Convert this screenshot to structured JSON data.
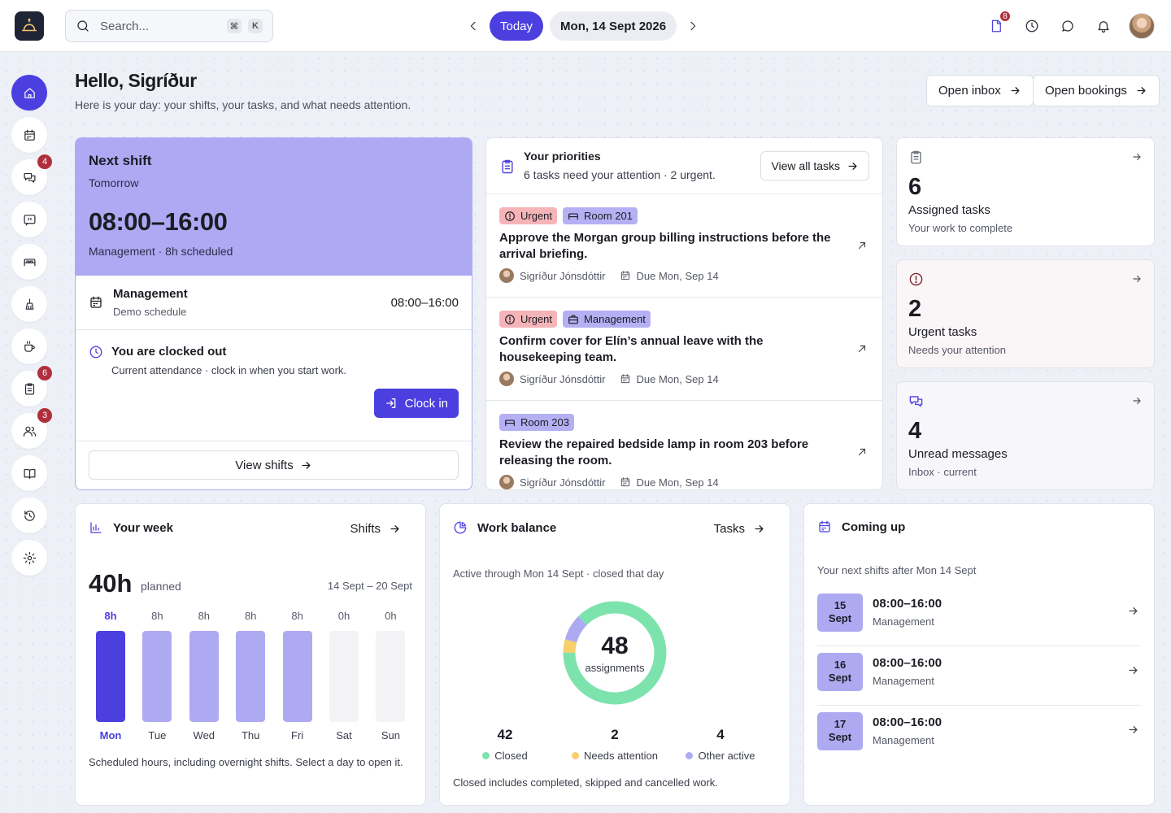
{
  "topbar": {
    "search_placeholder": "Search...",
    "kbd_cmd": "⌘",
    "kbd_k": "K",
    "today_label": "Today",
    "date_label": "Mon, 14 Sept 2026",
    "docs_badge": "8",
    "icons": [
      "logo-icon",
      "search-icon",
      "chevron-left-icon",
      "chevron-right-icon",
      "document-icon",
      "clock-icon",
      "chat-icon",
      "bell-icon"
    ]
  },
  "sidebar": {
    "items": [
      {
        "name": "home",
        "icon": "home-icon",
        "active": true,
        "badge": ""
      },
      {
        "name": "calendar",
        "icon": "calendar-icon",
        "badge": ""
      },
      {
        "name": "messages",
        "icon": "chat-bubbles-icon",
        "badge": "4"
      },
      {
        "name": "feedback",
        "icon": "chat-quote-icon",
        "badge": ""
      },
      {
        "name": "rooms",
        "icon": "bed-icon",
        "badge": ""
      },
      {
        "name": "housekeeping",
        "icon": "cleaning-icon",
        "badge": ""
      },
      {
        "name": "breakfast",
        "icon": "coffee-icon",
        "badge": ""
      },
      {
        "name": "tasks",
        "icon": "clipboard-icon",
        "badge": "6"
      },
      {
        "name": "people",
        "icon": "users-icon",
        "badge": "3"
      },
      {
        "name": "guide",
        "icon": "book-icon",
        "badge": ""
      },
      {
        "name": "history",
        "icon": "history-icon",
        "badge": ""
      },
      {
        "name": "settings",
        "icon": "gear-icon",
        "badge": ""
      }
    ]
  },
  "header": {
    "greeting": "Hello, Sigríður",
    "subtitle": "Here is your day: your shifts, your tasks, and what needs attention.",
    "open_inbox": "Open inbox",
    "open_bookings": "Open bookings"
  },
  "next_shift": {
    "title": "Next shift",
    "when": "Tomorrow",
    "time": "08:00–16:00",
    "meta": "Management · 8h scheduled",
    "row_title": "Management",
    "row_sub": "Demo schedule",
    "row_time": "08:00–16:00",
    "clock_title": "You are clocked out",
    "clock_sub": "Current attendance · clock in when you start work.",
    "clock_in": "Clock in",
    "view_shifts": "View shifts"
  },
  "priorities": {
    "title": "Your priorities",
    "subtitle": "6 tasks need your attention · 2 urgent.",
    "view_all": "View all tasks",
    "tasks": [
      {
        "tags": [
          {
            "label": "Urgent",
            "kind": "urgent"
          },
          {
            "label": "Room 201",
            "kind": "room"
          }
        ],
        "title": "Approve the Morgan group billing instructions before the arrival briefing.",
        "assignee": "Sigríður Jónsdóttir",
        "due": "Due Mon, Sep 14"
      },
      {
        "tags": [
          {
            "label": "Urgent",
            "kind": "urgent"
          },
          {
            "label": "Management",
            "kind": "room"
          }
        ],
        "title": "Confirm cover for Elín’s annual leave with the housekeeping team.",
        "assignee": "Sigríður Jónsdóttir",
        "due": "Due Mon, Sep 14"
      },
      {
        "tags": [
          {
            "label": "Room 203",
            "kind": "room"
          }
        ],
        "title": "Review the repaired bedside lamp in room 203 before releasing the room.",
        "assignee": "Sigríður Jónsdóttir",
        "due": "Due Mon, Sep 14"
      }
    ]
  },
  "stats": [
    {
      "num": "6",
      "label": "Assigned tasks",
      "sub": "Your work to complete",
      "icon": "clipboard-icon",
      "bg": "#ffffff"
    },
    {
      "num": "2",
      "label": "Urgent tasks",
      "sub": "Needs your attention",
      "icon": "alert-circle-icon",
      "bg": "#faf5f6"
    },
    {
      "num": "4",
      "label": "Unread messages",
      "sub": "Inbox · current",
      "icon": "chat-bubbles-icon",
      "bg": "#f6f6fb"
    }
  ],
  "week": {
    "title": "Your week",
    "link": "Shifts",
    "total": "40h",
    "planned": "planned",
    "range": "14 Sept – 20 Sept",
    "days": [
      {
        "day": "Mon",
        "val": "8h",
        "hours": 8,
        "selected": true
      },
      {
        "day": "Tue",
        "val": "8h",
        "hours": 8
      },
      {
        "day": "Wed",
        "val": "8h",
        "hours": 8
      },
      {
        "day": "Thu",
        "val": "8h",
        "hours": 8
      },
      {
        "day": "Fri",
        "val": "8h",
        "hours": 8
      },
      {
        "day": "Sat",
        "val": "0h",
        "hours": 0
      },
      {
        "day": "Sun",
        "val": "0h",
        "hours": 0
      }
    ],
    "note": "Scheduled hours, including overnight shifts. Select a day to open it."
  },
  "balance": {
    "title": "Work balance",
    "link": "Tasks",
    "sub": "Active through Mon 14 Sept · closed that day",
    "total": "48",
    "total_label": "assignments",
    "segments": [
      {
        "label": "Closed",
        "value": 42,
        "color": "#7de3ad"
      },
      {
        "label": "Needs attention",
        "value": 2,
        "color": "#f7cf6b"
      },
      {
        "label": "Other active",
        "value": 4,
        "color": "#aeaaf2"
      }
    ],
    "note": "Closed includes completed, skipped and cancelled work."
  },
  "coming_up": {
    "title": "Coming up",
    "sub": "Your next shifts after Mon 14 Sept",
    "items": [
      {
        "day": "15",
        "month": "Sept",
        "time": "08:00–16:00",
        "role": "Management"
      },
      {
        "day": "16",
        "month": "Sept",
        "time": "08:00–16:00",
        "role": "Management"
      },
      {
        "day": "17",
        "month": "Sept",
        "time": "08:00–16:00",
        "role": "Management"
      }
    ]
  },
  "colors": {
    "accent": "#4b3fe0",
    "accent_soft": "#adaaf3",
    "badge": "#b02f3c",
    "urgent_tag": "#f5b4b8"
  }
}
